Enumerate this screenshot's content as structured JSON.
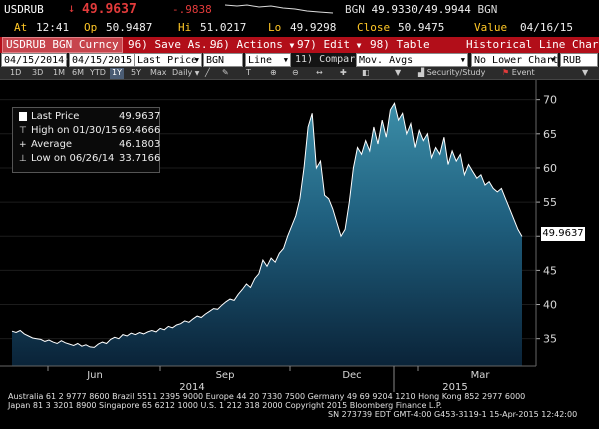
{
  "quote": {
    "ticker": "USDRUB",
    "arrow": "↓",
    "last": "49.9637",
    "change": "-.9838",
    "bid_ask_label": "BGN",
    "bid_ask": "49.9330/49.9944",
    "source": "BGN",
    "at_label": "At",
    "time": "12:41",
    "open_label": "Op",
    "open": "50.9487",
    "high_label": "Hi",
    "high": "51.0217",
    "low_label": "Lo",
    "low": "49.9298",
    "close_label": "Close",
    "close": "50.9475",
    "value_label": "Value",
    "value_date": "04/16/15"
  },
  "toolbar": {
    "security": "USDRUB BGN Curncy",
    "save_num": "96)",
    "save_label": "Save As...",
    "actions_num": "96)",
    "actions_label": "Actions",
    "edit_num": "97)",
    "edit_label": "Edit",
    "table_num": "98)",
    "table_label": "Table",
    "title": "Historical Line Chart"
  },
  "params": {
    "start_date": "04/15/2014",
    "end_date": "04/15/2015",
    "price_type": "Last Price",
    "source": "BGN",
    "chart_type": "Line",
    "compare_num": "11)",
    "compare_label": "Compare",
    "compare_value": "Mov. Avgs",
    "lower_chart": "No Lower Chart",
    "currency": "RUB"
  },
  "periods": {
    "items": [
      "1D",
      "3D",
      "1M",
      "6M",
      "YTD",
      "1Y",
      "5Y",
      "Max"
    ],
    "selected": "1Y",
    "frequency": "Daily",
    "security_study": "Security/Study",
    "event": "Event"
  },
  "legend": {
    "last_label": "Last Price",
    "last_value": "49.9637",
    "high_label": "High on 01/30/15",
    "high_value": "69.4666",
    "avg_label": "Average",
    "avg_value": "46.1803",
    "low_label": "Low on 06/26/14",
    "low_value": "33.7166"
  },
  "last_price_tag": "49.9637",
  "chart_data": {
    "type": "area",
    "title": "",
    "xlabel": "",
    "ylabel": "",
    "x_start": "04/15/2014",
    "x_end": "04/15/2015",
    "ylim": [
      31,
      72
    ],
    "y_ticks": [
      35,
      40,
      45,
      50,
      55,
      60,
      65,
      70
    ],
    "x_ticks": [
      "Jun",
      "Sep",
      "Dec",
      "Mar"
    ],
    "year_labels": [
      "2014",
      "2015"
    ],
    "series": [
      {
        "values": [
          36.1,
          35.9,
          36.2,
          35.7,
          35.4,
          35.1,
          35.0,
          34.9,
          34.6,
          34.8,
          34.5,
          34.3,
          34.7,
          34.4,
          34.2,
          34.0,
          34.3,
          33.9,
          34.1,
          33.8,
          33.72,
          34.2,
          34.5,
          34.3,
          34.9,
          35.2,
          35.0,
          35.6,
          35.4,
          35.8,
          35.6,
          35.9,
          35.7,
          36.0,
          36.2,
          36.0,
          36.5,
          36.3,
          36.8,
          36.6,
          37.0,
          37.2,
          37.6,
          37.4,
          37.9,
          38.3,
          38.1,
          38.6,
          39.0,
          39.4,
          39.3,
          39.9,
          40.4,
          40.8,
          40.6,
          41.5,
          42.2,
          43.0,
          42.5,
          43.8,
          44.5,
          46.5,
          45.6,
          46.8,
          46.2,
          47.5,
          48.2,
          50.0,
          51.5,
          53.0,
          55.5,
          60.0,
          66.0,
          68.0,
          60.0,
          61.0,
          56.0,
          55.5,
          54.0,
          52.0,
          50.0,
          51.0,
          55.0,
          60.0,
          63.0,
          62.0,
          64.0,
          62.5,
          66.0,
          63.5,
          67.0,
          64.5,
          68.5,
          69.47,
          67.0,
          68.0,
          65.0,
          66.5,
          63.0,
          65.5,
          64.0,
          65.0,
          61.5,
          63.0,
          62.0,
          64.5,
          60.5,
          62.5,
          61.0,
          62.0,
          59.0,
          60.5,
          59.5,
          58.5,
          59.0,
          57.5,
          58.0,
          57.0,
          56.5,
          57.0,
          55.5,
          54.0,
          52.5,
          51.0,
          49.96
        ]
      }
    ]
  },
  "footer": {
    "line1": "Australia 61 2 9777 8600 Brazil 5511 2395 9000 Europe 44 20 7330 7500 Germany 49 69 9204 1210 Hong Kong 852 2977 6000",
    "line2": "Japan 81 3 3201 8900       Singapore 65 6212 1000       U.S. 1 212 318 2000          Copyright 2015 Bloomberg Finance L.P.",
    "line3": "SN 273739 EDT  GMT-4:00 G453-3119-1 15-Apr-2015 12:42:00"
  }
}
